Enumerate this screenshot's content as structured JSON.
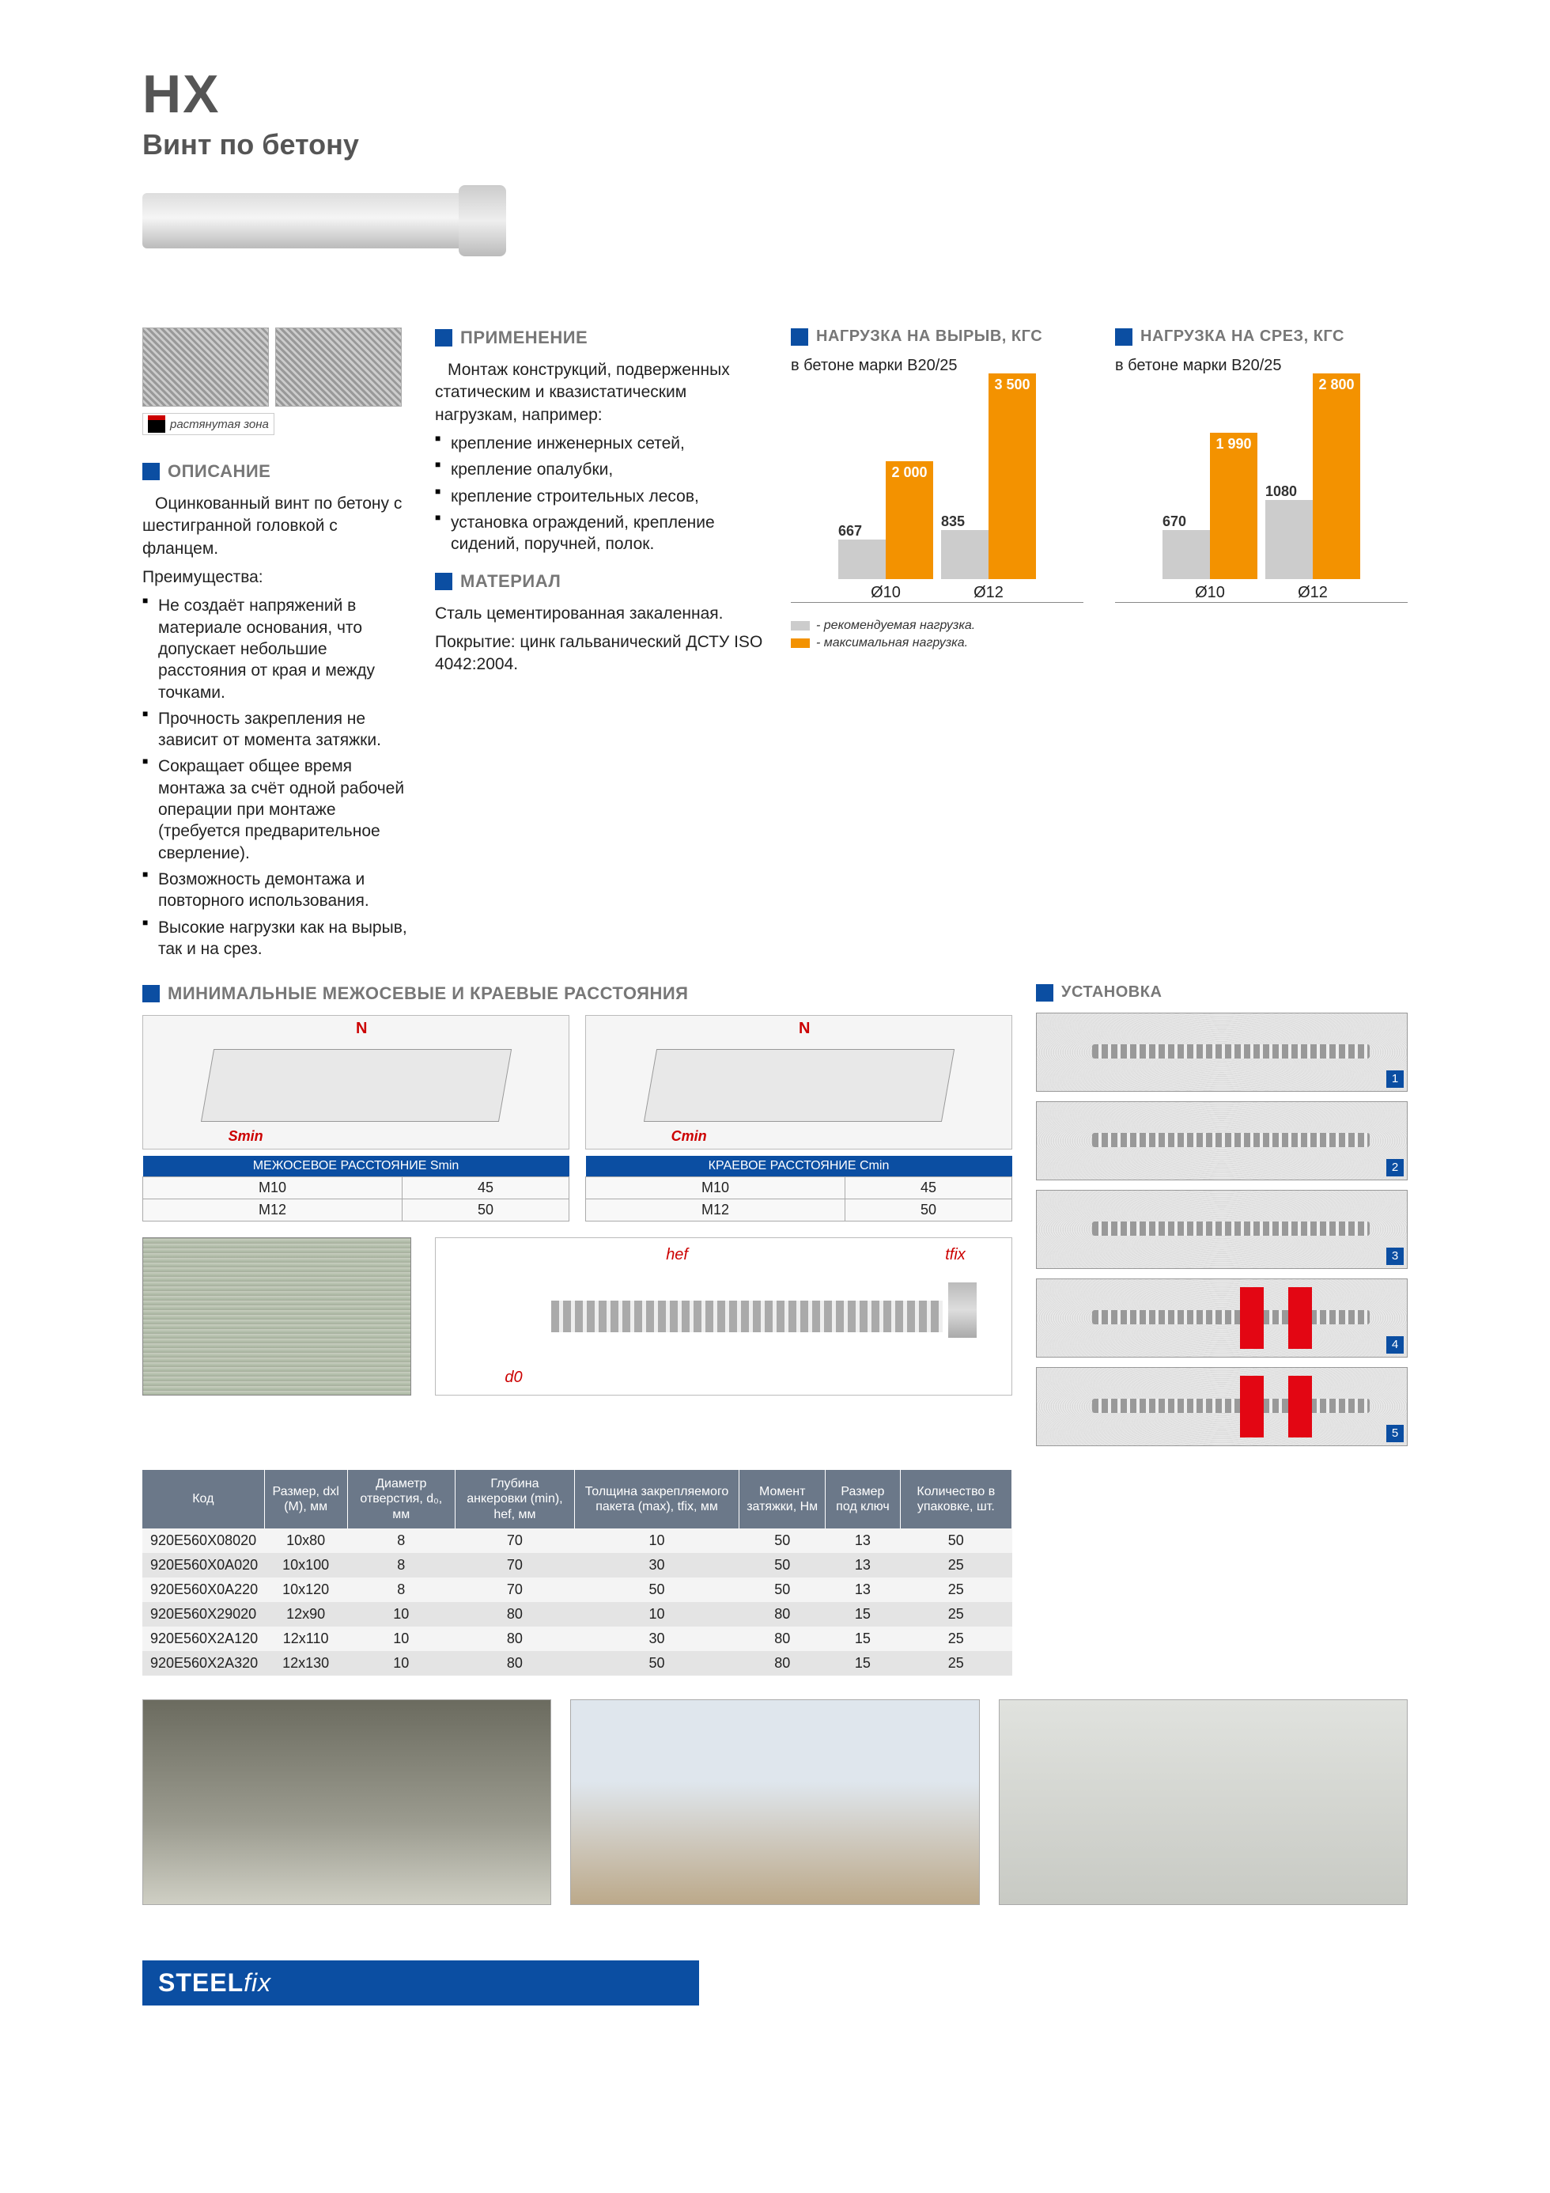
{
  "header": {
    "code": "НХ",
    "name": "Винт по бетону"
  },
  "thumbs_label": "растянутая зона",
  "description": {
    "title": "ОПИСАНИЕ",
    "lead": "Оцинкованный винт по бетону с шестигранной головкой с фланцем.",
    "advantages_heading": "Преимущества:",
    "items": [
      "Не создаёт напряжений в материале основания, что допускает небольшие расстояния от края и между точками.",
      "Прочность закрепления не зависит от момента затяжки.",
      "Сокращает общее время монтажа за счёт одной рабочей операции при монтаже (требуется предварительное сверление).",
      "Возможность демонтажа и повторного использования.",
      "Высокие нагрузки как на вырыв, так и на срез."
    ]
  },
  "application": {
    "title": "ПРИМЕНЕНИЕ",
    "lead": "Монтаж конструкций, подверженных статическим и квазистатическим нагрузкам, например:",
    "items": [
      "крепление инженерных сетей,",
      "крепление опалубки,",
      "крепление строительных лесов,",
      "установка ограждений, крепление сидений, поручней, полок."
    ]
  },
  "material": {
    "title": "МАТЕРИАЛ",
    "line1": "Сталь цементированная закаленная.",
    "line2": "Покрытие: цинк гальванический ДСТУ ISO 4042:2004."
  },
  "charts": {
    "pullout": {
      "title": "НАГРУЗКА НА ВЫРЫВ, КГС",
      "subtitle": "в бетоне марки В20/25",
      "categories": [
        "Ø10",
        "Ø12"
      ],
      "rec": [
        667,
        835
      ],
      "max": [
        2000,
        3500
      ],
      "ymax": 3500,
      "colors": {
        "rec": "#cccccc",
        "max": "#f39200",
        "max_text": "#ffffff",
        "rec_text": "#333333"
      }
    },
    "shear": {
      "title": "НАГРУЗКА НА СРЕЗ, КГС",
      "subtitle": "в бетоне марки В20/25",
      "categories": [
        "Ø10",
        "Ø12"
      ],
      "rec": [
        670,
        1080
      ],
      "max": [
        1990,
        2800
      ],
      "ymax": 2800,
      "colors": {
        "rec": "#cccccc",
        "max": "#f39200"
      }
    },
    "legend": {
      "rec": "- рекомендуемая нагрузка.",
      "max": "- максимальная нагрузка."
    }
  },
  "clearance": {
    "title": "МИНИМАЛЬНЫЕ МЕЖОСЕВЫЕ И КРАЕВЫЕ РАССТОЯНИЯ",
    "tables": [
      {
        "header": "МЕЖОСЕВОЕ РАССТОЯНИЕ  Smin",
        "rows": [
          [
            "М10",
            "45"
          ],
          [
            "М12",
            "50"
          ]
        ]
      },
      {
        "header": "КРАЕВОЕ РАССТОЯНИЕ  Cmin",
        "rows": [
          [
            "М10",
            "45"
          ],
          [
            "М12",
            "50"
          ]
        ]
      }
    ],
    "diagram_labels": {
      "n": "N",
      "s": "Smin",
      "c": "Cmin"
    }
  },
  "install": {
    "title": "УСТАНОВКА",
    "steps": [
      1,
      2,
      3,
      4,
      5
    ]
  },
  "dim_labels": {
    "hef": "hef",
    "d0": "d0",
    "tfix": "tfix"
  },
  "spec_table": {
    "headers": [
      "Код",
      "Размер, dxl (M), мм",
      "Диаметр отверстия, d₀, мм",
      "Глубина анкеровки (min), hef, мм",
      "Толщина закрепляемого пакета (max), tfix, мм",
      "Момент затяжки, Нм",
      "Размер под ключ",
      "Количество в упаковке, шт."
    ],
    "rows": [
      [
        "920E560X08020",
        "10x80",
        "8",
        "70",
        "10",
        "50",
        "13",
        "50"
      ],
      [
        "920E560X0A020",
        "10x100",
        "8",
        "70",
        "30",
        "50",
        "13",
        "25"
      ],
      [
        "920E560X0A220",
        "10x120",
        "8",
        "70",
        "50",
        "50",
        "13",
        "25"
      ],
      [
        "920E560X29020",
        "12x90",
        "10",
        "80",
        "10",
        "80",
        "15",
        "25"
      ],
      [
        "920E560X2A120",
        "12x110",
        "10",
        "80",
        "30",
        "80",
        "15",
        "25"
      ],
      [
        "920E560X2A320",
        "12x130",
        "10",
        "80",
        "50",
        "80",
        "15",
        "25"
      ]
    ],
    "header_bg": "#6b7889",
    "row_odd_bg": "#f4f4f4",
    "row_even_bg": "#e4e4e4"
  },
  "footer": {
    "brand_main": "STEEL",
    "brand_suffix": "fix",
    "brand_color": "#0b4ea2"
  }
}
